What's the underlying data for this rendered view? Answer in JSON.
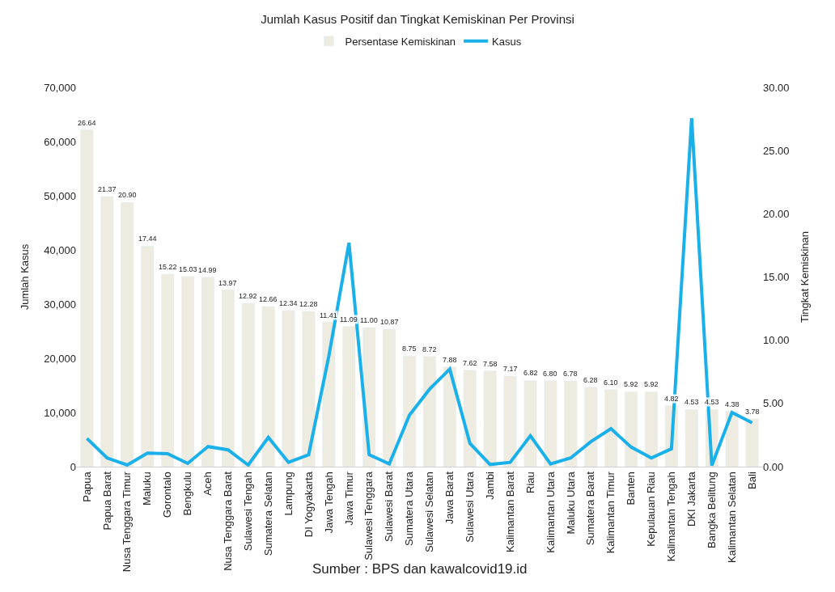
{
  "chart_data": {
    "type": "bar",
    "title": "Jumlah Kasus Positif dan Tingkat Kemiskinan Per Provinsi",
    "ylabel": "Jumlah Kasus",
    "y2label": "Tingkat Kemiskinan",
    "categories": [
      "Papua",
      "Papua Barat",
      "Nusa Tenggara Timur",
      "Maluku",
      "Gorontalo",
      "Bengkulu",
      "Aceh",
      "Nusa Tenggara Barat",
      "Sulawesi Tengah",
      "Sumatera Selatan",
      "Lampung",
      "DI Yogyakarta",
      "Jawa Tengah",
      "Jawa Timur",
      "Sulawesi Tenggara",
      "Sulawesi Barat",
      "Sumatera Utara",
      "Sulawesi Selatan",
      "Jawa Barat",
      "Sulawesi Utara",
      "Jambi",
      "Kalimantan Barat",
      "Riau",
      "Kalimantan Utara",
      "Maluku Utara",
      "Sumatera Barat",
      "Kalimantan Timur",
      "Banten",
      "Kepulauan Riau",
      "Kalimantan Tengah",
      "DKI Jakarta",
      "Bangka Belitung",
      "Kalimantan Selatan",
      "Bali"
    ],
    "series": [
      {
        "name": "Persentase Kemiskinan",
        "axis": "y2",
        "color": "#eeebe0",
        "values": [
          26.64,
          21.37,
          20.9,
          17.44,
          15.22,
          15.03,
          14.99,
          13.97,
          12.92,
          12.66,
          12.34,
          12.28,
          11.41,
          11.09,
          11.0,
          10.87,
          8.75,
          8.72,
          7.88,
          7.62,
          7.58,
          7.17,
          6.82,
          6.8,
          6.78,
          6.28,
          6.1,
          5.92,
          5.92,
          4.82,
          4.53,
          4.53,
          4.38,
          3.78
        ],
        "value_labels": [
          "26.64",
          "21.37",
          "20.90",
          "17.44",
          "15.22",
          "15.03",
          "14.99",
          "13.97",
          "12.92",
          "12.66",
          "12.34",
          "12.28",
          "11.41",
          "11.09",
          "11.00",
          "10.87",
          "8.75",
          "8.72",
          "7.88",
          "7.62",
          "7.58",
          "7.17",
          "6.82",
          "6.80",
          "6.78",
          "6.28",
          "6.10",
          "5.92",
          "5.92",
          "4.82",
          "4.53",
          "4.53",
          "4.38",
          "3.78"
        ]
      },
      {
        "name": "Kasus",
        "type": "line",
        "axis": "y",
        "color": "#1ab0ea",
        "line_style": "solid",
        "marker": "none",
        "values": [
          5200,
          1600,
          300,
          2500,
          2400,
          600,
          3700,
          3100,
          300,
          5400,
          800,
          2200,
          20400,
          41300,
          2200,
          500,
          9500,
          14300,
          18000,
          4300,
          400,
          800,
          5700,
          500,
          1600,
          4600,
          7000,
          3600,
          1600,
          3300,
          64300,
          200,
          10000,
          8100
        ]
      }
    ],
    "ylim": [
      0,
      70000
    ],
    "yticks": [
      {
        "value": 0,
        "label": "0"
      },
      {
        "value": 10000,
        "label": "10,000"
      },
      {
        "value": 20000,
        "label": "20,000"
      },
      {
        "value": 30000,
        "label": "30,000"
      },
      {
        "value": 40000,
        "label": "40,000"
      },
      {
        "value": 50000,
        "label": "50,000"
      },
      {
        "value": 60000,
        "label": "60,000"
      },
      {
        "value": 70000,
        "label": "70,000"
      }
    ],
    "y2lim": [
      0,
      30
    ],
    "y2ticks": [
      {
        "value": 0,
        "label": "0.00"
      },
      {
        "value": 5,
        "label": "5.00"
      },
      {
        "value": 10,
        "label": "10.00"
      },
      {
        "value": 15,
        "label": "15.00"
      },
      {
        "value": 20,
        "label": "20.00"
      },
      {
        "value": 25,
        "label": "25.00"
      },
      {
        "value": 30,
        "label": "30.00"
      }
    ],
    "legend": "top",
    "annotations": [
      "Sumber : BPS dan kawalcovid19.id"
    ]
  }
}
